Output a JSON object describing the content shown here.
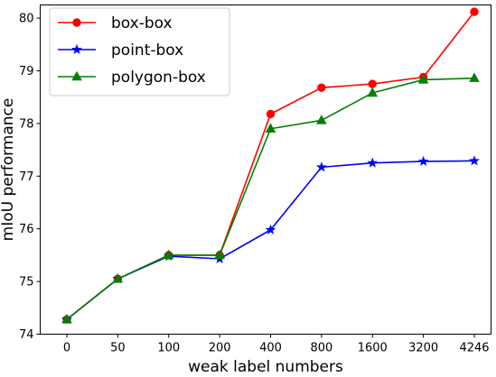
{
  "chart_data": {
    "type": "line",
    "xlabel": "weak label numbers",
    "ylabel": "mIoU performance",
    "categories": [
      "0",
      "50",
      "100",
      "200",
      "400",
      "800",
      "1600",
      "3200",
      "4246"
    ],
    "ylim": [
      74,
      80.25
    ],
    "yticks": [
      74,
      75,
      76,
      77,
      78,
      79,
      80
    ],
    "grid": false,
    "legend_position": "top-left",
    "series": [
      {
        "name": "box-box",
        "color": "#ff0000",
        "marker": "circle",
        "values": [
          74.28,
          75.05,
          75.5,
          75.5,
          78.18,
          78.68,
          78.75,
          78.88,
          80.12
        ]
      },
      {
        "name": "point-box",
        "color": "#0000ff",
        "marker": "star",
        "values": [
          74.28,
          75.05,
          75.48,
          75.43,
          75.98,
          77.17,
          77.25,
          77.28,
          77.29
        ]
      },
      {
        "name": "polygon-box",
        "color": "#008000",
        "marker": "triangle",
        "values": [
          74.28,
          75.05,
          75.5,
          75.5,
          77.9,
          78.06,
          78.58,
          78.83,
          78.86
        ]
      }
    ]
  }
}
